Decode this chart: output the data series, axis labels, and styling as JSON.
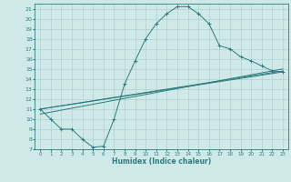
{
  "xlabel": "Humidex (Indice chaleur)",
  "bg_color": "#cfe8e8",
  "line_color": "#2d7d7d",
  "grid_color": "#b0d0d0",
  "xlim": [
    -0.5,
    23.5
  ],
  "ylim": [
    7,
    21.5
  ],
  "xticks": [
    0,
    1,
    2,
    3,
    4,
    5,
    6,
    7,
    8,
    9,
    10,
    11,
    12,
    13,
    14,
    15,
    16,
    17,
    18,
    19,
    20,
    21,
    22,
    23
  ],
  "yticks": [
    7,
    8,
    9,
    10,
    11,
    12,
    13,
    14,
    15,
    16,
    17,
    18,
    19,
    20,
    21
  ],
  "curve_x": [
    0,
    1,
    2,
    3,
    4,
    5,
    6,
    7,
    8,
    9,
    10,
    11,
    12,
    13,
    14,
    15,
    16,
    17,
    18,
    19,
    20,
    21,
    22,
    23
  ],
  "curve_y": [
    11,
    10,
    9,
    9,
    8,
    7.2,
    7.3,
    10,
    13.5,
    15.8,
    18,
    19.5,
    20.5,
    21.2,
    21.2,
    20.5,
    19.5,
    17.3,
    17,
    16.2,
    15.8,
    15.3,
    14.8,
    14.7
  ],
  "line1_x": [
    0,
    23
  ],
  "line1_y": [
    11,
    14.8
  ],
  "line2_x": [
    0,
    23
  ],
  "line2_y": [
    11,
    14.7
  ],
  "line3_x": [
    0,
    23
  ],
  "line3_y": [
    10.5,
    15.0
  ]
}
